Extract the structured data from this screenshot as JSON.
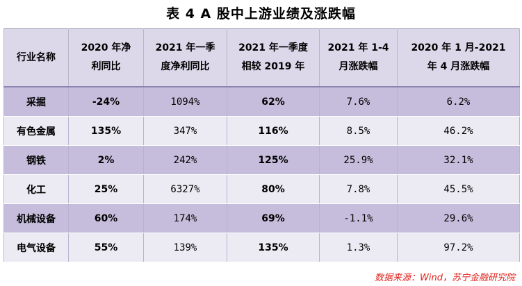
{
  "title": "表 4  A 股中上游业绩及涨跌幅",
  "table": {
    "headers": [
      [
        "行业名称"
      ],
      [
        "2020 年净",
        "利同比"
      ],
      [
        "2021 年一季",
        "度净利同比"
      ],
      [
        "2021 年一季度",
        "相较 2019 年"
      ],
      [
        "2021 年 1-4",
        "月涨跌幅"
      ],
      [
        "2020 年 1 月-2021",
        "年 4 月涨跌幅"
      ]
    ],
    "rows": [
      [
        "采掘",
        "-24%",
        "1094%",
        "62%",
        "7.6%",
        "6.2%"
      ],
      [
        "有色金属",
        "135%",
        "347%",
        "116%",
        "8.5%",
        "46.2%"
      ],
      [
        "钢铁",
        "2%",
        "242%",
        "125%",
        "25.9%",
        "32.1%"
      ],
      [
        "化工",
        "25%",
        "6327%",
        "80%",
        "7.8%",
        "45.5%"
      ],
      [
        "机械设备",
        "60%",
        "174%",
        "69%",
        "-1.1%",
        "29.6%"
      ],
      [
        "电气设备",
        "55%",
        "139%",
        "135%",
        "1.3%",
        "97.2%"
      ]
    ]
  },
  "source": "数据来源：Wind，苏宁金融研究院",
  "colors": {
    "header_bg": "#dcd8ea",
    "row_shade": "#c5bddb",
    "row_plain": "#ecebf3",
    "source_text": "#e0201a"
  }
}
